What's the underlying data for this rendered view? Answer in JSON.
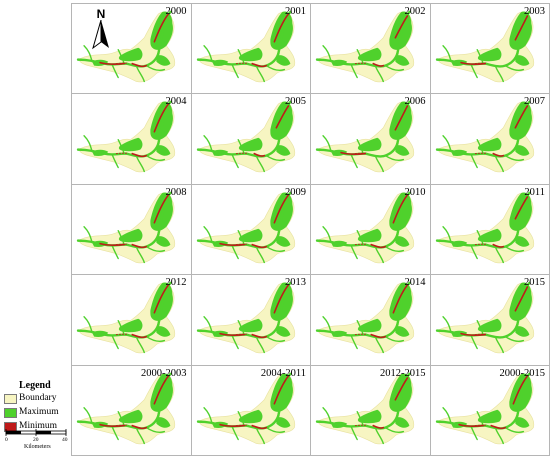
{
  "panels": [
    {
      "label": "2000",
      "variant": 1
    },
    {
      "label": "2001",
      "variant": 0
    },
    {
      "label": "2002",
      "variant": 2
    },
    {
      "label": "2003",
      "variant": 3
    },
    {
      "label": "2004",
      "variant": 0
    },
    {
      "label": "2005",
      "variant": 2
    },
    {
      "label": "2006",
      "variant": 3
    },
    {
      "label": "2007",
      "variant": 2
    },
    {
      "label": "2008",
      "variant": 1
    },
    {
      "label": "2009",
      "variant": 1
    },
    {
      "label": "2010",
      "variant": 0
    },
    {
      "label": "2011",
      "variant": 2
    },
    {
      "label": "2012",
      "variant": 0
    },
    {
      "label": "2013",
      "variant": 1
    },
    {
      "label": "2014",
      "variant": 0
    },
    {
      "label": "2015",
      "variant": 3
    },
    {
      "label": "2000-2003",
      "variant": 1
    },
    {
      "label": "2004-2011",
      "variant": 1
    },
    {
      "label": "2012-2015",
      "variant": 2
    },
    {
      "label": "2000-2015",
      "variant": 1
    }
  ],
  "north_arrow": {
    "label": "N"
  },
  "legend": {
    "title": "Legend",
    "items": [
      {
        "label": "Boundary",
        "color": "#f7f5c2"
      },
      {
        "label": "Maximum",
        "color": "#4fd12c"
      },
      {
        "label": "Minimum",
        "color": "#bf1a1a"
      }
    ]
  },
  "scale_bar": {
    "ticks": [
      "0",
      "20",
      "40"
    ],
    "unit": "Kilometers"
  }
}
